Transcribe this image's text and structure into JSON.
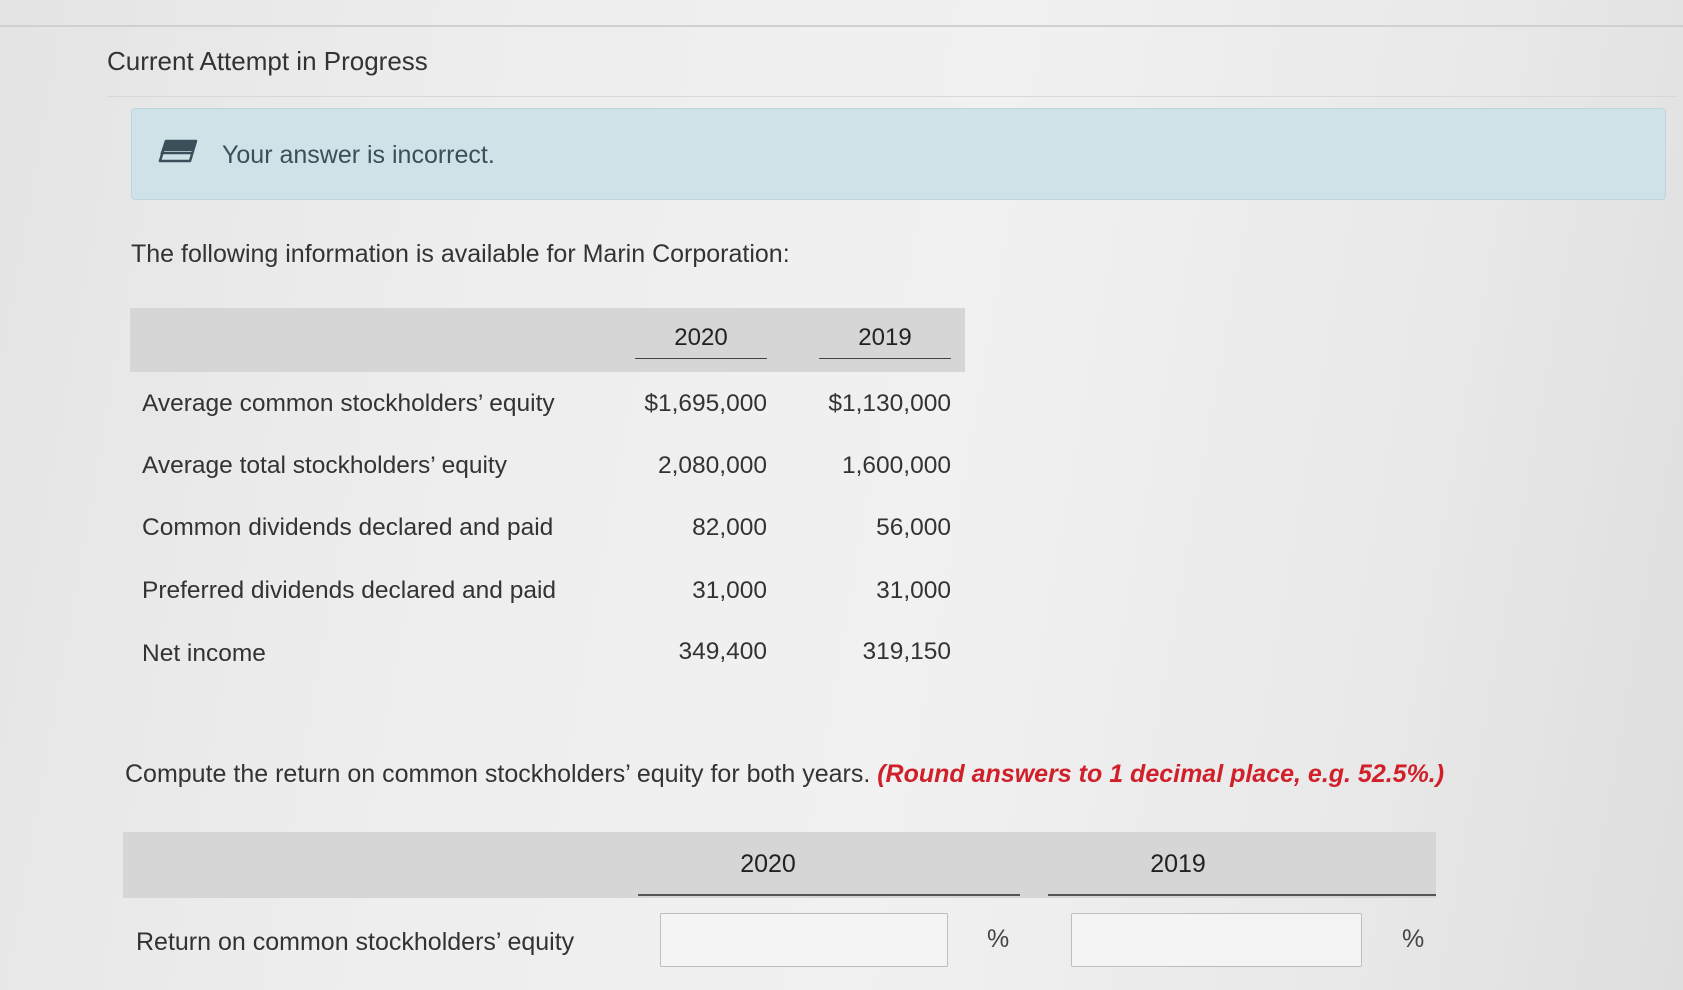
{
  "attempt": {
    "title": "Current Attempt in Progress"
  },
  "feedback": {
    "message": "Your answer is incorrect.",
    "icon": "pencil-icon"
  },
  "intro": "The following information is available for Marin Corporation:",
  "data_table": {
    "columns": [
      "2020",
      "2019"
    ],
    "rows": [
      {
        "label": "Average common stockholders’ equity",
        "v2020": "$1,695,000",
        "v2019": "$1,130,000"
      },
      {
        "label": "Average total stockholders’ equity",
        "v2020": "2,080,000",
        "v2019": "1,600,000"
      },
      {
        "label": "Common dividends declared and paid",
        "v2020": "82,000",
        "v2019": "56,000"
      },
      {
        "label": "Preferred dividends declared and paid",
        "v2020": "31,000",
        "v2019": "31,000"
      },
      {
        "label": "Net income",
        "v2020": "349,400",
        "v2019": "319,150"
      }
    ]
  },
  "question": {
    "text": "Compute the return on common stockholders’ equity for both years.",
    "hint": "(Round answers to 1 decimal place, e.g. 52.5%.)"
  },
  "answer_table": {
    "columns": [
      "2020",
      "2019"
    ],
    "row_label": "Return on common stockholders’ equity",
    "value_2020": "",
    "value_2019": "",
    "unit": "%"
  },
  "colors": {
    "banner_bg": "#cfe2e8",
    "hint_red": "#d0202a",
    "header_gray": "#d6d6d6"
  }
}
